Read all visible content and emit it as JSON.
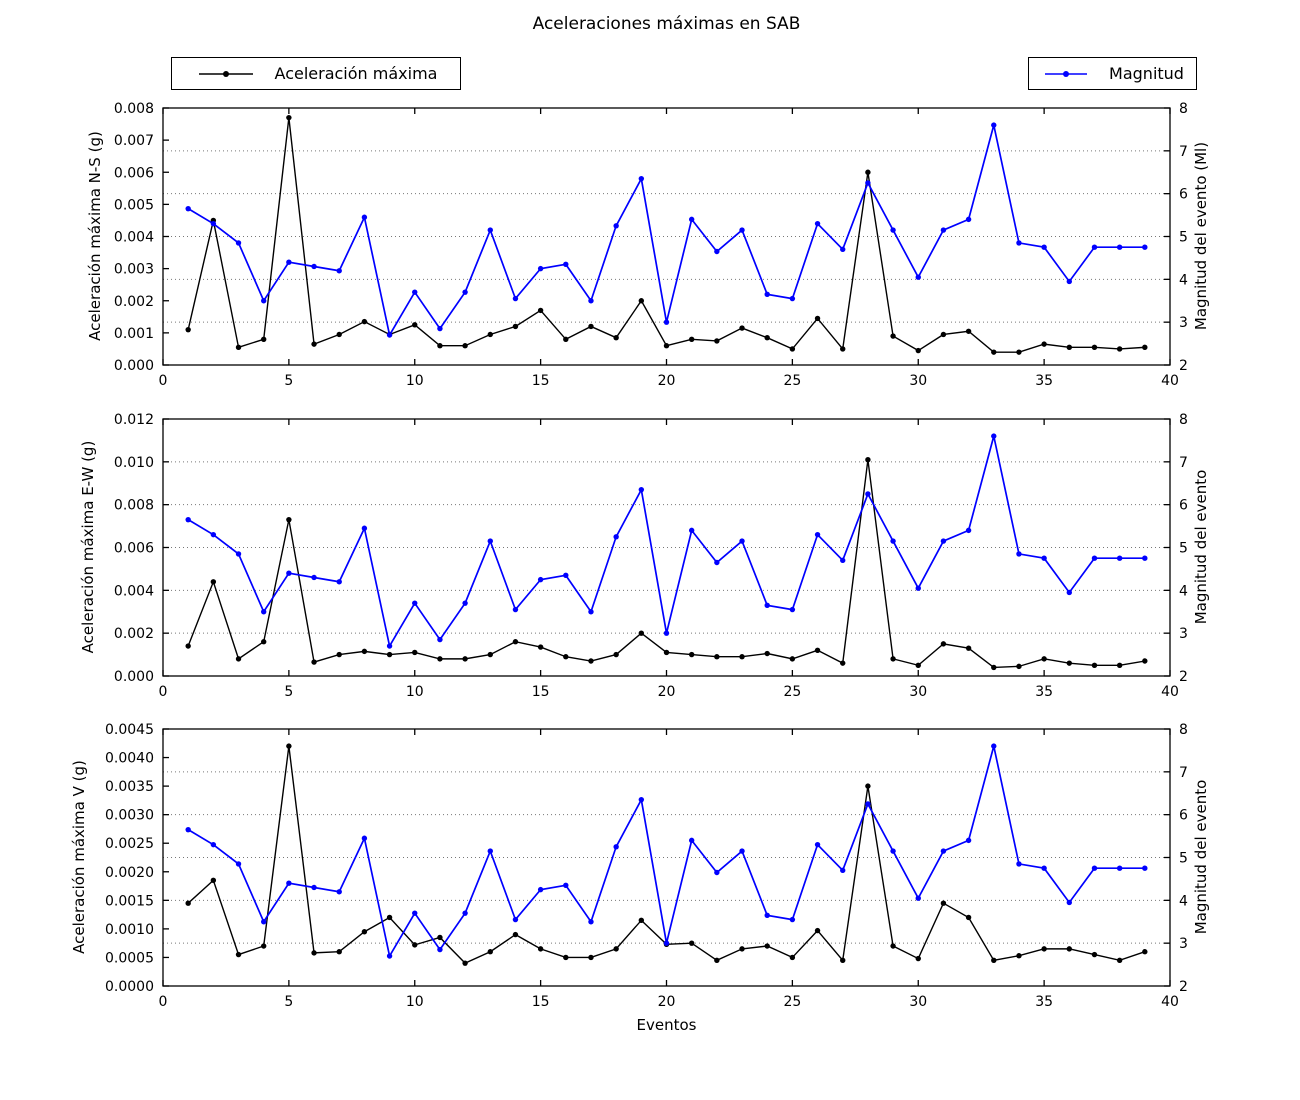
{
  "title": "Aceleraciones máximas en SAB",
  "xlabel": "Eventos",
  "legends": [
    {
      "label": "Aceleración máxima",
      "color": "#000000"
    },
    {
      "label": "Magnitud",
      "color": "#0000ff"
    }
  ],
  "colors": {
    "acceleration": "#000000",
    "magnitude": "#0000ff",
    "grid": "#777777",
    "spine": "#000000"
  },
  "chart_data": [
    {
      "type": "line",
      "subplot": "ns",
      "ylabel_left": "Aceleración máxima N-S (g)",
      "ylabel_right": "Magnitud del evento (Ml)",
      "xlim": [
        0,
        40
      ],
      "xticks": [
        0,
        5,
        10,
        15,
        20,
        25,
        30,
        35,
        40
      ],
      "ylim_left": [
        0,
        0.008
      ],
      "yticks_left": [
        0,
        0.001,
        0.002,
        0.003,
        0.004,
        0.005,
        0.006,
        0.007,
        0.008
      ],
      "yticks_left_labels": [
        "0.000",
        "0.001",
        "0.002",
        "0.003",
        "0.004",
        "0.005",
        "0.006",
        "0.007",
        "0.008"
      ],
      "ylim_right": [
        2,
        8
      ],
      "yticks_right": [
        2,
        3,
        4,
        5,
        6,
        7,
        8
      ],
      "grid_values_right": [
        3,
        4,
        5,
        6,
        7
      ],
      "x": [
        1,
        2,
        3,
        4,
        5,
        6,
        7,
        8,
        9,
        10,
        11,
        12,
        13,
        14,
        15,
        16,
        17,
        18,
        19,
        20,
        21,
        22,
        23,
        24,
        25,
        26,
        27,
        28,
        29,
        30,
        31,
        32,
        33,
        34,
        35,
        36,
        37,
        38,
        39
      ],
      "series": [
        {
          "name": "Aceleración máxima",
          "axis": "left",
          "color": "#000000",
          "values": [
            0.0011,
            0.0045,
            0.00055,
            0.0008,
            0.0077,
            0.00065,
            0.00095,
            0.00135,
            0.00095,
            0.00125,
            0.0006,
            0.0006,
            0.00095,
            0.0012,
            0.0017,
            0.0008,
            0.0012,
            0.00085,
            0.002,
            0.0006,
            0.0008,
            0.00075,
            0.00115,
            0.00085,
            0.0005,
            0.00145,
            0.0005,
            0.006,
            0.0009,
            0.00045,
            0.00095,
            0.00105,
            0.0004,
            0.0004,
            0.00065,
            0.00055,
            0.00055,
            0.0005,
            0.00055
          ]
        },
        {
          "name": "Magnitud",
          "axis": "right",
          "color": "#0000ff",
          "values": [
            5.65,
            5.3,
            4.85,
            3.5,
            4.4,
            4.3,
            4.2,
            5.45,
            2.7,
            3.7,
            2.85,
            3.7,
            5.15,
            3.55,
            4.25,
            4.35,
            3.5,
            5.25,
            6.35,
            3.0,
            5.4,
            4.65,
            5.15,
            3.65,
            3.55,
            5.3,
            4.7,
            6.25,
            5.15,
            4.05,
            5.15,
            5.4,
            7.6,
            4.85,
            4.75,
            3.95,
            4.75,
            4.75,
            4.75
          ]
        }
      ]
    },
    {
      "type": "line",
      "subplot": "ew",
      "ylabel_left": "Aceleración máxima E-W (g)",
      "ylabel_right": "Magnitud del evento",
      "xlim": [
        0,
        40
      ],
      "xticks": [
        0,
        5,
        10,
        15,
        20,
        25,
        30,
        35,
        40
      ],
      "ylim_left": [
        0,
        0.012
      ],
      "yticks_left": [
        0,
        0.002,
        0.004,
        0.006,
        0.008,
        0.01,
        0.012
      ],
      "yticks_left_labels": [
        "0.000",
        "0.002",
        "0.004",
        "0.006",
        "0.008",
        "0.010",
        "0.012"
      ],
      "ylim_right": [
        2,
        8
      ],
      "yticks_right": [
        2,
        3,
        4,
        5,
        6,
        7,
        8
      ],
      "grid_values_right": [
        3,
        4,
        5,
        6,
        7
      ],
      "x": [
        1,
        2,
        3,
        4,
        5,
        6,
        7,
        8,
        9,
        10,
        11,
        12,
        13,
        14,
        15,
        16,
        17,
        18,
        19,
        20,
        21,
        22,
        23,
        24,
        25,
        26,
        27,
        28,
        29,
        30,
        31,
        32,
        33,
        34,
        35,
        36,
        37,
        38,
        39
      ],
      "series": [
        {
          "name": "Aceleración máxima",
          "axis": "left",
          "color": "#000000",
          "values": [
            0.0014,
            0.0044,
            0.0008,
            0.0016,
            0.0073,
            0.00065,
            0.001,
            0.00115,
            0.001,
            0.0011,
            0.0008,
            0.0008,
            0.001,
            0.0016,
            0.00135,
            0.0009,
            0.0007,
            0.001,
            0.002,
            0.0011,
            0.001,
            0.0009,
            0.0009,
            0.00105,
            0.0008,
            0.0012,
            0.0006,
            0.0101,
            0.0008,
            0.0005,
            0.0015,
            0.0013,
            0.0004,
            0.00045,
            0.0008,
            0.0006,
            0.0005,
            0.0005,
            0.0007
          ]
        },
        {
          "name": "Magnitud",
          "axis": "right",
          "color": "#0000ff",
          "values": [
            5.65,
            5.3,
            4.85,
            3.5,
            4.4,
            4.3,
            4.2,
            5.45,
            2.7,
            3.7,
            2.85,
            3.7,
            5.15,
            3.55,
            4.25,
            4.35,
            3.5,
            5.25,
            6.35,
            3.0,
            5.4,
            4.65,
            5.15,
            3.65,
            3.55,
            5.3,
            4.7,
            6.25,
            5.15,
            4.05,
            5.15,
            5.4,
            7.6,
            4.85,
            4.75,
            3.95,
            4.75,
            4.75,
            4.75
          ]
        }
      ]
    },
    {
      "type": "line",
      "subplot": "v",
      "ylabel_left": "Aceleración máxima V (g)",
      "ylabel_right": "Magnitud del evento",
      "xlim": [
        0,
        40
      ],
      "xticks": [
        0,
        5,
        10,
        15,
        20,
        25,
        30,
        35,
        40
      ],
      "ylim_left": [
        0,
        0.0045
      ],
      "yticks_left": [
        0,
        0.0005,
        0.001,
        0.0015,
        0.002,
        0.0025,
        0.003,
        0.0035,
        0.004,
        0.0045
      ],
      "yticks_left_labels": [
        "0.0000",
        "0.0005",
        "0.0010",
        "0.0015",
        "0.0020",
        "0.0025",
        "0.0030",
        "0.0035",
        "0.0040",
        "0.0045"
      ],
      "ylim_right": [
        2,
        8
      ],
      "yticks_right": [
        2,
        3,
        4,
        5,
        6,
        7,
        8
      ],
      "grid_values_right": [
        3,
        4,
        5,
        6,
        7
      ],
      "x": [
        1,
        2,
        3,
        4,
        5,
        6,
        7,
        8,
        9,
        10,
        11,
        12,
        13,
        14,
        15,
        16,
        17,
        18,
        19,
        20,
        21,
        22,
        23,
        24,
        25,
        26,
        27,
        28,
        29,
        30,
        31,
        32,
        33,
        34,
        35,
        36,
        37,
        38,
        39
      ],
      "series": [
        {
          "name": "Aceleración máxima",
          "axis": "left",
          "color": "#000000",
          "values": [
            0.00145,
            0.00185,
            0.00055,
            0.0007,
            0.0042,
            0.00058,
            0.0006,
            0.00095,
            0.0012,
            0.00072,
            0.00085,
            0.0004,
            0.0006,
            0.0009,
            0.00065,
            0.0005,
            0.0005,
            0.00065,
            0.00115,
            0.00073,
            0.00075,
            0.00045,
            0.00065,
            0.0007,
            0.0005,
            0.00097,
            0.00045,
            0.0035,
            0.0007,
            0.00048,
            0.00145,
            0.0012,
            0.00045,
            0.00053,
            0.00065,
            0.00065,
            0.00055,
            0.00045,
            0.0006
          ]
        },
        {
          "name": "Magnitud",
          "axis": "right",
          "color": "#0000ff",
          "values": [
            5.65,
            5.3,
            4.85,
            3.5,
            4.4,
            4.3,
            4.2,
            5.45,
            2.7,
            3.7,
            2.85,
            3.7,
            5.15,
            3.55,
            4.25,
            4.35,
            3.5,
            5.25,
            6.35,
            3.0,
            5.4,
            4.65,
            5.15,
            3.65,
            3.55,
            5.3,
            4.7,
            6.25,
            5.15,
            4.05,
            5.15,
            5.4,
            7.6,
            4.85,
            4.75,
            3.95,
            4.75,
            4.75,
            4.75
          ]
        }
      ]
    }
  ]
}
